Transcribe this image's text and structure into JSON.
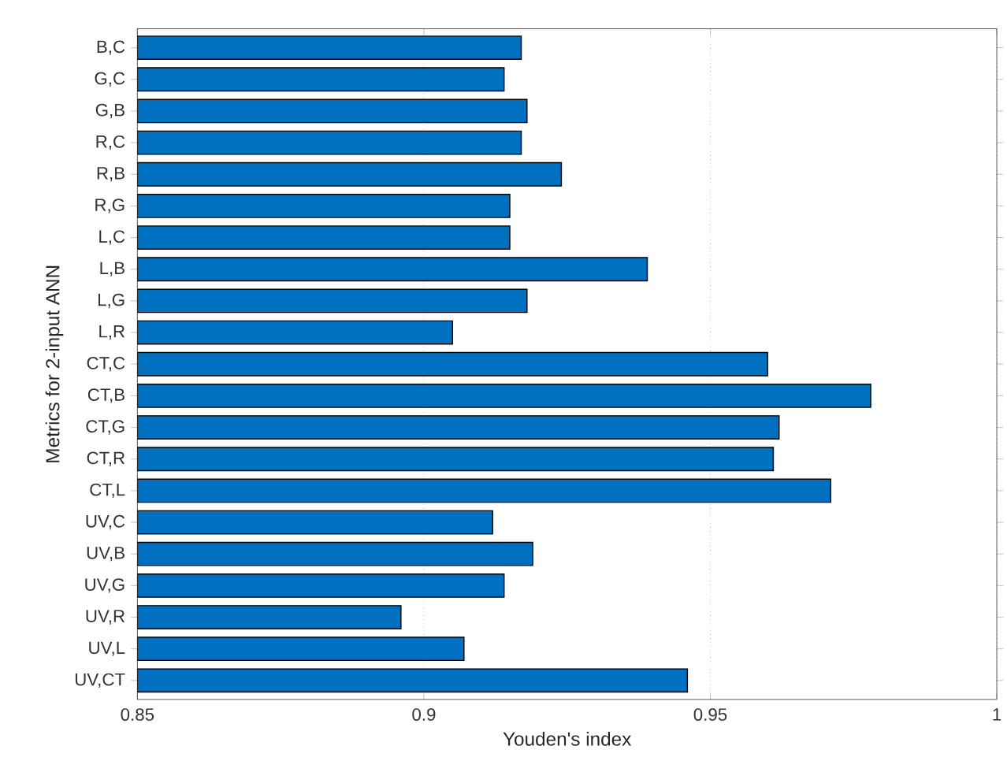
{
  "chart_data": {
    "type": "bar",
    "orientation": "horizontal",
    "xlabel": "Youden's index",
    "ylabel": "Metrics for 2-input ANN",
    "categories": [
      "B,C",
      "G,C",
      "G,B",
      "R,C",
      "R,B",
      "R,G",
      "L,C",
      "L,B",
      "L,G",
      "L,R",
      "CT,C",
      "CT,B",
      "CT,G",
      "CT,R",
      "CT,L",
      "UV,C",
      "UV,B",
      "UV,G",
      "UV,R",
      "UV,L",
      "UV,CT"
    ],
    "values": [
      0.917,
      0.914,
      0.918,
      0.917,
      0.924,
      0.915,
      0.915,
      0.939,
      0.918,
      0.905,
      0.96,
      0.978,
      0.962,
      0.961,
      0.971,
      0.912,
      0.919,
      0.914,
      0.896,
      0.907,
      0.946
    ],
    "color": "#0070c0",
    "xlim": [
      0.85,
      1
    ],
    "xticks": [
      0.85,
      {
        "value": 0.9,
        "label": "0.9"
      },
      0.95,
      {
        "value": 1,
        "label": "1"
      }
    ],
    "grid": "x"
  }
}
